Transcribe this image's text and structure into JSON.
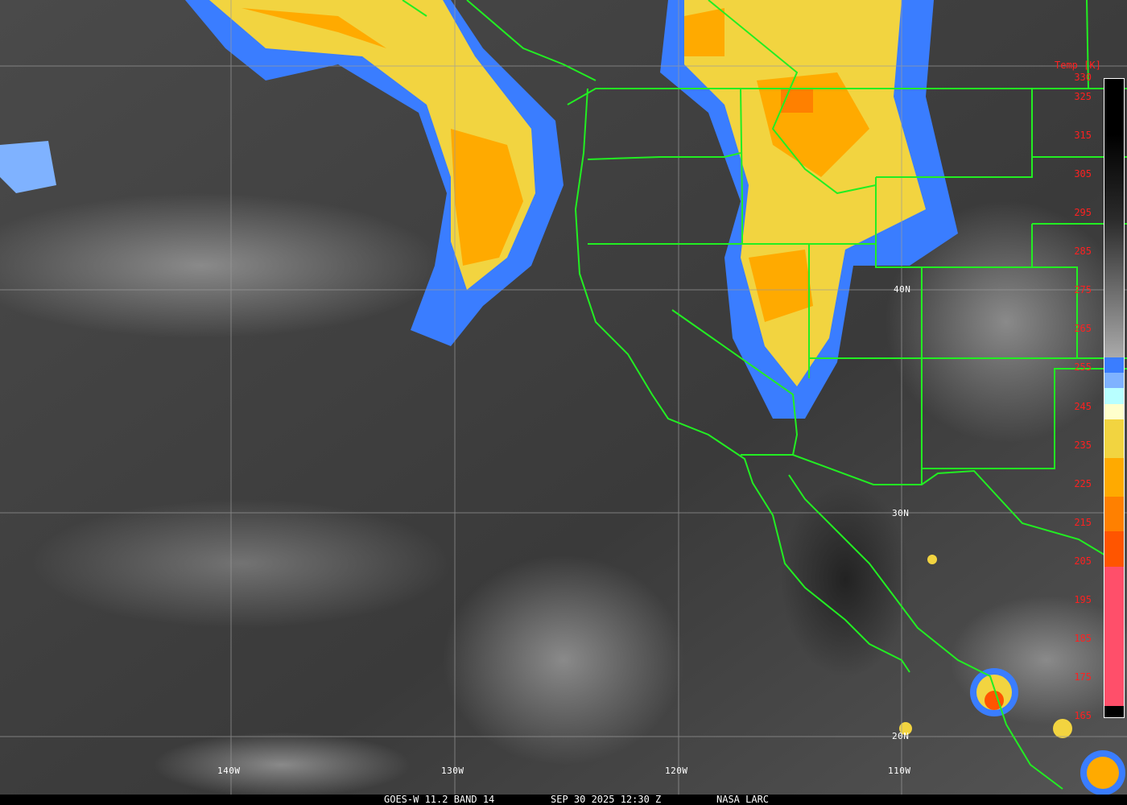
{
  "footer": {
    "satellite": "GOES-W 11.2 BAND 14",
    "datetime": "SEP 30 2025 12:30 Z",
    "source": "NASA LARC"
  },
  "grid_labels": {
    "lon": [
      "140W",
      "130W",
      "120W",
      "110W"
    ],
    "lat": [
      "40N",
      "30N",
      "20N"
    ]
  },
  "colorbar": {
    "title": "Temp [K]",
    "ticks": [
      "330",
      "325",
      "315",
      "305",
      "295",
      "285",
      "275",
      "265",
      "255",
      "245",
      "235",
      "225",
      "215",
      "205",
      "195",
      "185",
      "175",
      "165"
    ],
    "range_k": [
      165,
      330
    ],
    "segments": [
      {
        "from": 330,
        "to": 258,
        "color": "gradient-black-to-gray"
      },
      {
        "from": 258,
        "to": 254,
        "color": "#3a7dff"
      },
      {
        "from": 254,
        "to": 250,
        "color": "#7fb2ff"
      },
      {
        "from": 250,
        "to": 246,
        "color": "#b8ffff"
      },
      {
        "from": 246,
        "to": 242,
        "color": "#ffffcc"
      },
      {
        "from": 242,
        "to": 232,
        "color": "#f2d440"
      },
      {
        "from": 232,
        "to": 222,
        "color": "#ffaa00"
      },
      {
        "from": 222,
        "to": 213,
        "color": "#ff8000"
      },
      {
        "from": 213,
        "to": 204,
        "color": "#ff5500"
      },
      {
        "from": 204,
        "to": 168,
        "color": "#ff4f6a"
      },
      {
        "from": 168,
        "to": 165,
        "color": "#000000"
      }
    ]
  },
  "colors": {
    "borders": "#22ee22",
    "grid": "#9a9a9a",
    "labels": "#ff2020"
  }
}
